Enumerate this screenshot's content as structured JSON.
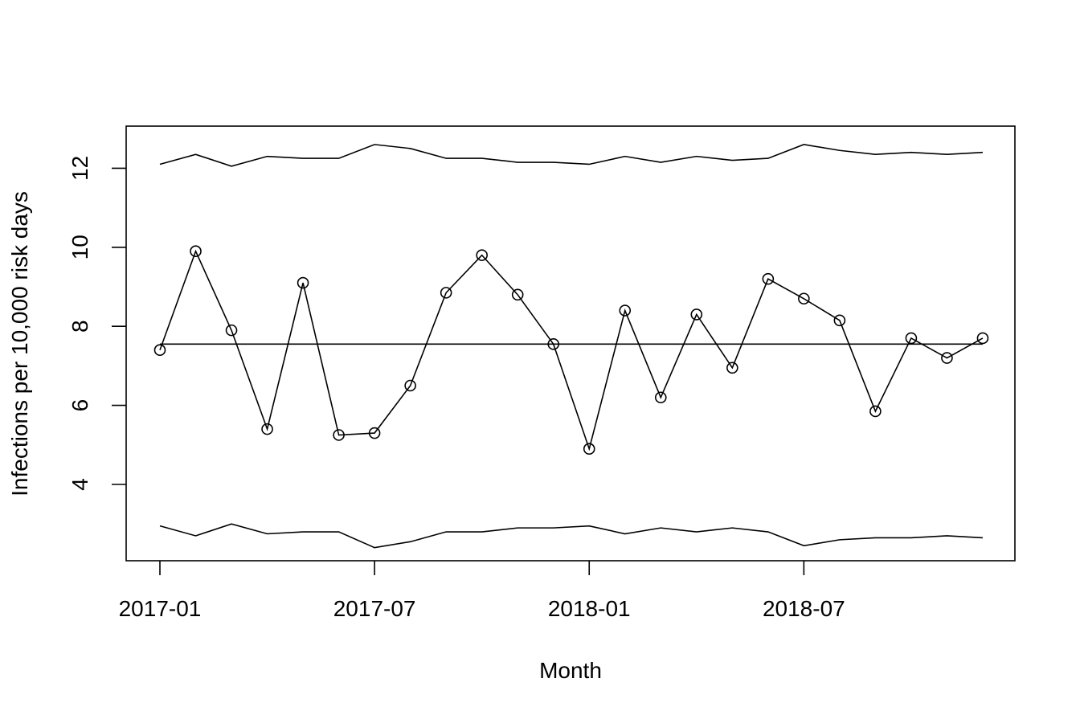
{
  "chart_data": {
    "type": "line",
    "title": "",
    "xlabel": "Month",
    "ylabel": "Infections per 10,000 risk days",
    "x": [
      "2017-01",
      "2017-02",
      "2017-03",
      "2017-04",
      "2017-05",
      "2017-06",
      "2017-07",
      "2017-08",
      "2017-09",
      "2017-10",
      "2017-11",
      "2017-12",
      "2018-01",
      "2018-02",
      "2018-03",
      "2018-04",
      "2018-05",
      "2018-06",
      "2018-07",
      "2018-08",
      "2018-09",
      "2018-10",
      "2018-11",
      "2018-12"
    ],
    "x_ticks": [
      "2017-01",
      "2017-07",
      "2018-01",
      "2018-07"
    ],
    "y_ticks": [
      4,
      6,
      8,
      10,
      12
    ],
    "ylim": [
      2.1,
      13.1
    ],
    "grid": false,
    "series": [
      {
        "role": "observed",
        "markers": "open-circle",
        "values": [
          7.4,
          9.9,
          7.9,
          5.4,
          9.1,
          5.25,
          5.3,
          6.5,
          8.85,
          9.8,
          8.8,
          7.55,
          4.9,
          8.4,
          6.2,
          8.3,
          6.95,
          9.2,
          8.7,
          8.15,
          5.85,
          7.7,
          7.2,
          7.7
        ]
      },
      {
        "role": "upper-limit",
        "markers": "none",
        "values": [
          12.1,
          12.35,
          12.05,
          12.3,
          12.25,
          12.25,
          12.6,
          12.5,
          12.25,
          12.25,
          12.15,
          12.15,
          12.1,
          12.3,
          12.15,
          12.3,
          12.2,
          12.25,
          12.6,
          12.45,
          12.35,
          12.4,
          12.35,
          12.4
        ]
      },
      {
        "role": "center-line",
        "markers": "none",
        "values": [
          7.55,
          7.55,
          7.55,
          7.55,
          7.55,
          7.55,
          7.55,
          7.55,
          7.55,
          7.55,
          7.55,
          7.55,
          7.55,
          7.55,
          7.55,
          7.55,
          7.55,
          7.55,
          7.55,
          7.55,
          7.55,
          7.55,
          7.55,
          7.55
        ]
      },
      {
        "role": "lower-limit",
        "markers": "none",
        "values": [
          2.95,
          2.7,
          3.0,
          2.75,
          2.8,
          2.8,
          2.4,
          2.55,
          2.8,
          2.8,
          2.9,
          2.9,
          2.95,
          2.75,
          2.9,
          2.8,
          2.9,
          2.8,
          2.45,
          2.6,
          2.65,
          2.65,
          2.7,
          2.65
        ]
      }
    ]
  }
}
